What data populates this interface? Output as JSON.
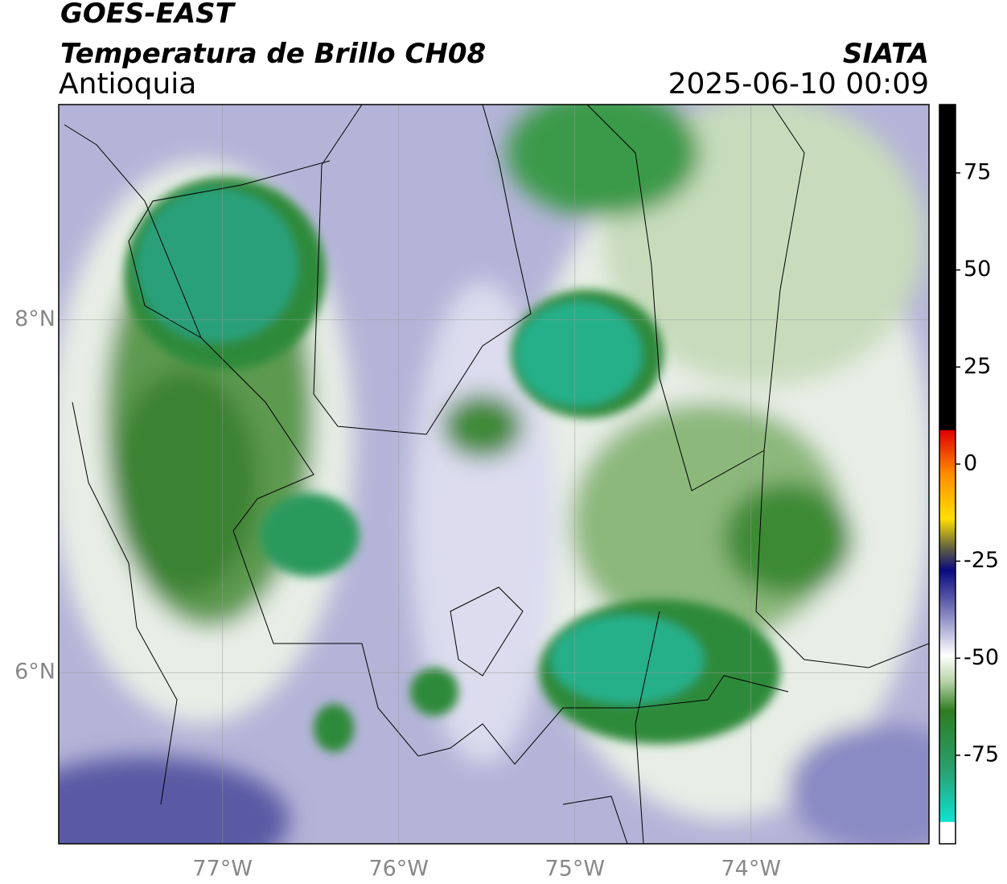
{
  "header": {
    "title": "GOES-EAST",
    "subtitle": "Temperatura de Brillo CH08",
    "region": "Antioquia",
    "source": "SIATA",
    "datetime": "2025-06-10 00:09"
  },
  "map": {
    "lonlim": [
      -77.93,
      -72.99
    ],
    "latlim": [
      5.03,
      9.22
    ],
    "lon_ticks": [
      {
        "value": -77,
        "label": "77°W"
      },
      {
        "value": -76,
        "label": "76°W"
      },
      {
        "value": -75,
        "label": "75°W"
      },
      {
        "value": -74,
        "label": "74°W"
      }
    ],
    "lat_ticks": [
      {
        "value": 8,
        "label": "8°N"
      },
      {
        "value": 6,
        "label": "6°N"
      }
    ]
  },
  "colorbar": {
    "lim": [
      -97.8,
      92.6
    ],
    "ticks": [
      75,
      50,
      25,
      0,
      -25,
      -50,
      -75
    ]
  }
}
